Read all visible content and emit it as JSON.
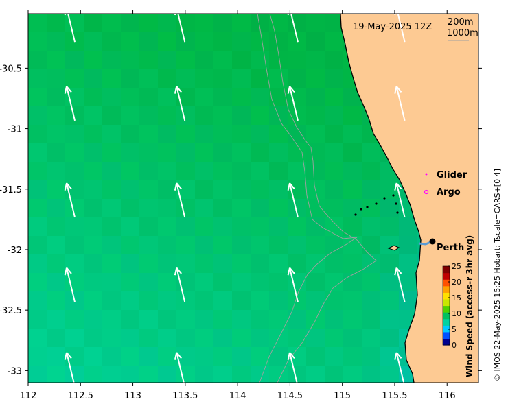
{
  "map": {
    "timestamp": "19-May-2025 12Z",
    "contours": [
      "200m",
      "1000m"
    ],
    "legend": {
      "glider": "Glider",
      "argo": "Argo"
    },
    "place_label": "Perth",
    "credit": "© IMOS 22-May-2025 15:25 Hobart; Tscale=CARS+[0 4]",
    "colorbar": {
      "title": "Wind Speed (access-r 3hr avg)",
      "ticks": [
        "25",
        "20",
        "15",
        "10",
        "5",
        "0"
      ],
      "min": 0,
      "max": 25,
      "colors": [
        "#00008f",
        "#0050ff",
        "#00c8ff",
        "#00d2a0",
        "#00c060",
        "#50d000",
        "#c8e600",
        "#ffe000",
        "#ffa000",
        "#ff5000",
        "#c00000",
        "#800000"
      ]
    },
    "x_ticks": [
      "112",
      "112.5",
      "113",
      "113.5",
      "114",
      "114.5",
      "115",
      "115.5",
      "116"
    ],
    "y_ticks": [
      "-30.5",
      "-31",
      "-31.5",
      "-32",
      "-32.5",
      "-33"
    ],
    "lon_range": [
      112,
      116.3
    ],
    "lat_range": [
      -33.1,
      -30.05
    ],
    "land_color": "#fdca93",
    "wind_vectors": {
      "lons": [
        112.4,
        113.45,
        114.53,
        115.55
      ],
      "lats": [
        -30.0,
        -30.65,
        -31.45,
        -32.15,
        -32.85
      ]
    }
  }
}
